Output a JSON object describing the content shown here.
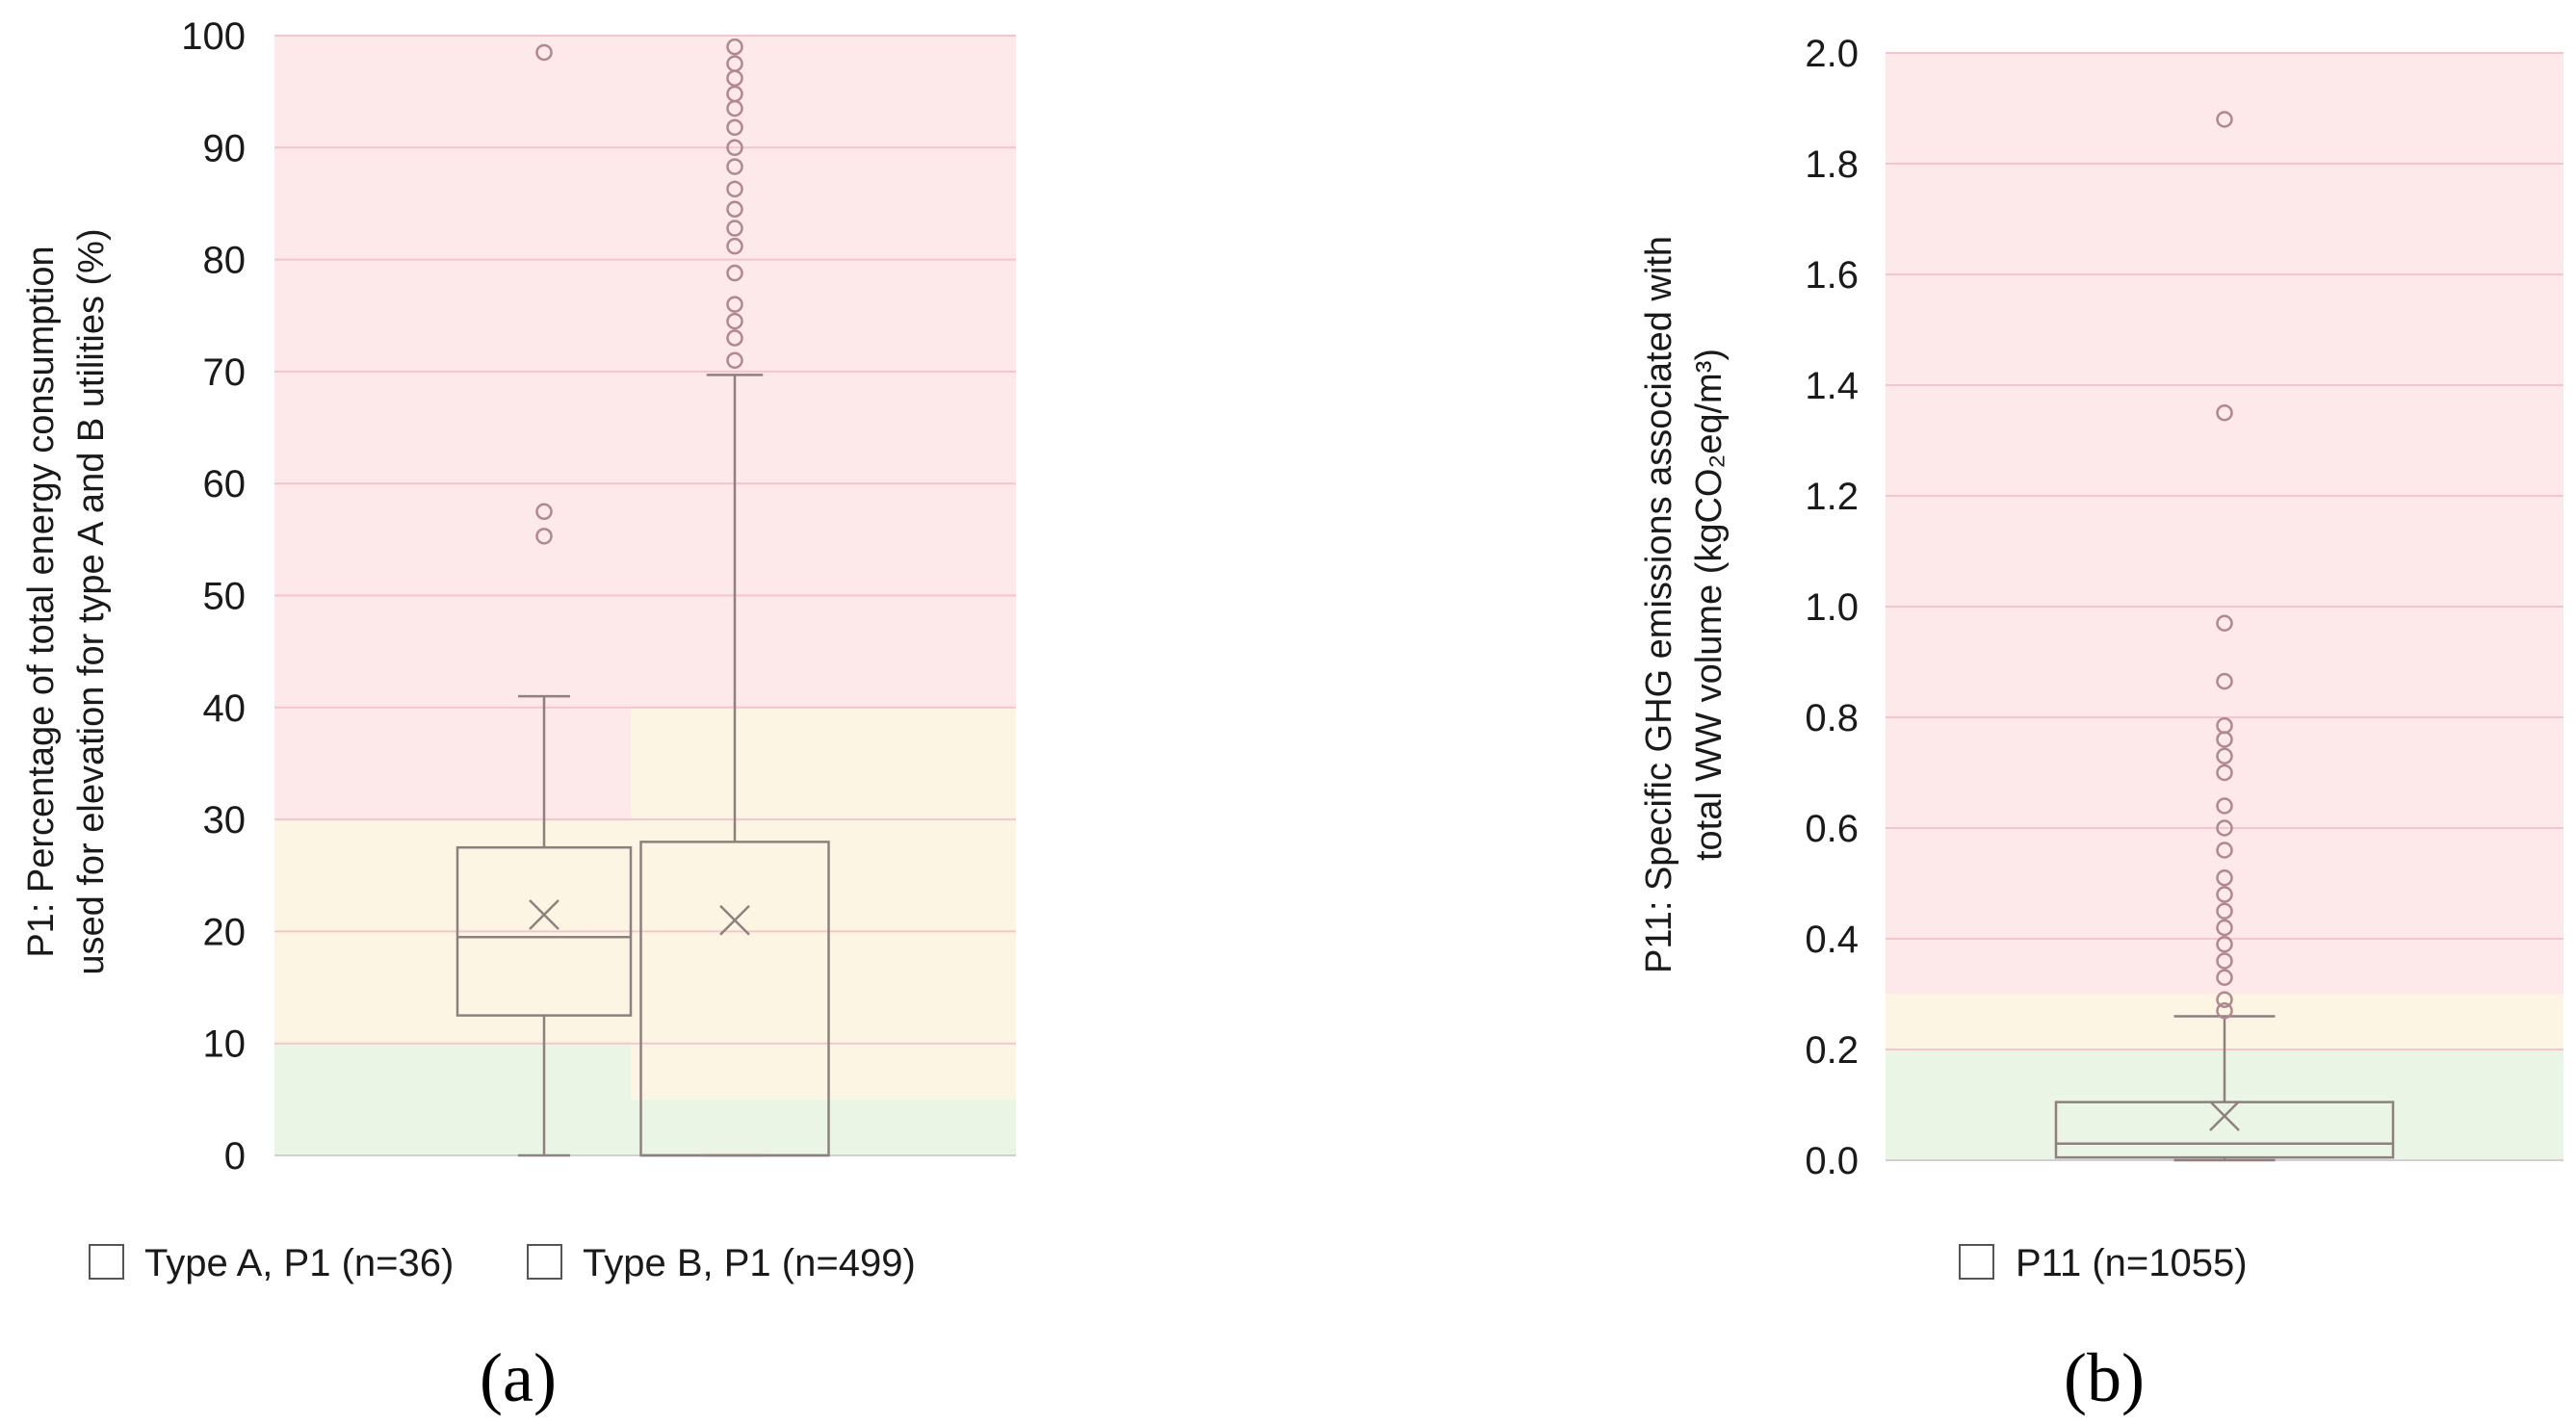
{
  "chart_data": [
    {
      "type": "box",
      "panel_label": "(a)",
      "ylabel_line1": "P1: Percentage of total energy consumption",
      "ylabel_line2": "used for elevation for type A and B utilities (%)",
      "ylim": [
        0,
        100
      ],
      "yticks": [
        "0",
        "10",
        "20",
        "30",
        "40",
        "50",
        "60",
        "70",
        "80",
        "90",
        "100"
      ],
      "zones": [
        {
          "series": "Type A, P1 (n=36)",
          "green": [
            0,
            10
          ],
          "yellow": [
            10,
            30
          ],
          "red": [
            30,
            100
          ]
        },
        {
          "series": "Type B, P1 (n=499)",
          "green": [
            0,
            5
          ],
          "yellow": [
            5,
            40
          ],
          "red": [
            40,
            100
          ]
        }
      ],
      "series": [
        {
          "name": "Type A, P1 (n=36)",
          "min": 0,
          "q1": 12.5,
          "median": 19.5,
          "q3": 27.5,
          "max": 41,
          "mean": 21.5,
          "outliers": [
            55.3,
            57.5,
            98.5
          ]
        },
        {
          "name": "Type B, P1 (n=499)",
          "min": 0,
          "q1": 0,
          "median": 0,
          "q3": 28,
          "max": 69.7,
          "mean": 21,
          "outliers": [
            71,
            73,
            74.5,
            76,
            78.8,
            81.2,
            82.8,
            84.5,
            86.3,
            88.3,
            90,
            91.8,
            93.5,
            94.8,
            96.2,
            97.5,
            99
          ]
        }
      ]
    },
    {
      "type": "box",
      "panel_label": "(b)",
      "ylabel_line1": "P11: Specific GHG emissions associated with",
      "ylabel_line2": "total WW volume (kgCO₂eq/m³)",
      "ylim": [
        0,
        2.0
      ],
      "yticks": [
        "0.0",
        "0.2",
        "0.4",
        "0.6",
        "0.8",
        "1.0",
        "1.2",
        "1.4",
        "1.6",
        "1.8",
        "2.0"
      ],
      "zones": [
        {
          "series": "P11 (n=1055)",
          "green": [
            0,
            0.2
          ],
          "yellow": [
            0.2,
            0.3
          ],
          "red": [
            0.3,
            2.0
          ]
        }
      ],
      "series": [
        {
          "name": "P11 (n=1055)",
          "min": 0,
          "q1": 0.005,
          "median": 0.03,
          "q3": 0.105,
          "max": 0.26,
          "mean": 0.08,
          "outliers": [
            0.27,
            0.29,
            0.33,
            0.36,
            0.39,
            0.42,
            0.45,
            0.48,
            0.51,
            0.56,
            0.6,
            0.64,
            0.7,
            0.73,
            0.76,
            0.785,
            0.865,
            0.97,
            1.35,
            1.88
          ]
        }
      ]
    }
  ],
  "colors": {
    "red_zone": "#fde8ea",
    "yellow_zone": "#fdf5e3",
    "green_zone": "#eaf5e6",
    "gridline": "#f2c6cc",
    "box_stroke": "#8f8080",
    "outlier_stroke": "#b08890",
    "axis": "#d0d0d0"
  }
}
